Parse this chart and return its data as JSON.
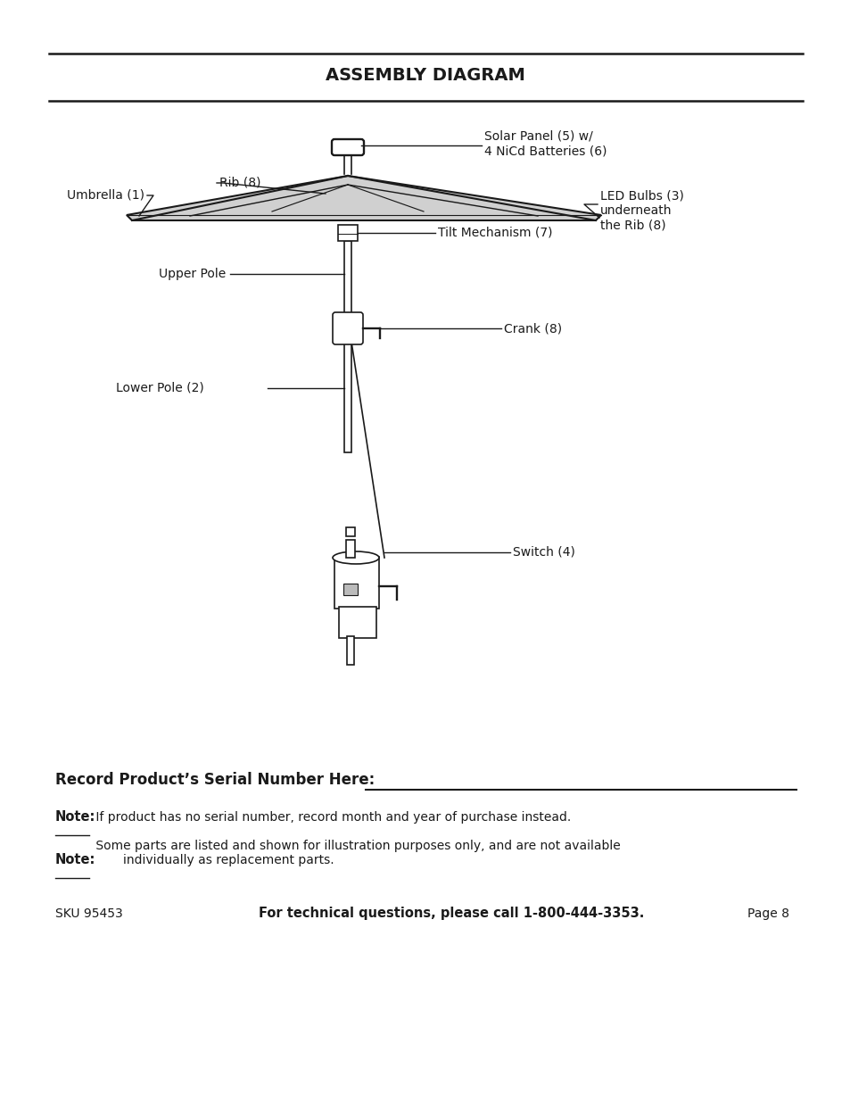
{
  "title": "ASSEMBLY DIAGRAM",
  "bg_color": "#ffffff",
  "lc": "#1a1a1a",
  "tc": "#1a1a1a",
  "labels": {
    "solar_panel": "Solar Panel (5) w/\n4 NiCd Batteries (6)",
    "led_bulbs": "LED Bulbs (3)\nunderneath\nthe Rib (8)",
    "umbrella": "Umbrella (1)",
    "rib": "Rib (8)",
    "upper_pole": "Upper Pole",
    "tilt_mechanism": "Tilt Mechanism (7)",
    "crank": "Crank (8)",
    "lower_pole": "Lower Pole (2)",
    "switch": "Switch (4)"
  },
  "serial_number_label": "Record Product’s Serial Number Here:",
  "note1_bold": "Note:",
  "note1_text": " If product has no serial number, record month and year of purchase instead.",
  "note2_bold": "Note:",
  "note2_text": " Some parts are listed and shown for illustration purposes only, and are not available\n        individually as replacement parts.",
  "footer_sku": "SKU 95453",
  "footer_bold": "For technical questions, please call 1-800-444-3353.",
  "footer_page": "Page 8"
}
